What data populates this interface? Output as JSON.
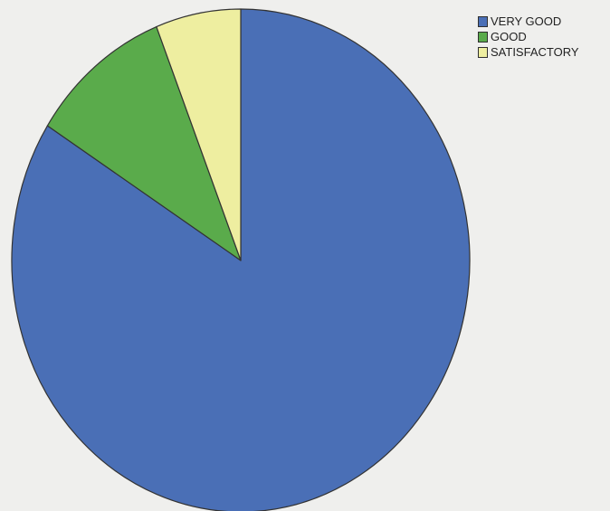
{
  "chart_data": {
    "type": "pie",
    "title": "",
    "categories": [
      "VERY GOOD",
      "GOOD",
      "SATISFACTORY"
    ],
    "values": [
      84,
      10,
      6
    ],
    "colors": [
      "#4a6fb6",
      "#5aab4b",
      "#eeeea0"
    ],
    "edge_color": "#333333",
    "legend_position": "top-right",
    "start": "12 o'clock",
    "direction": "clockwise"
  }
}
